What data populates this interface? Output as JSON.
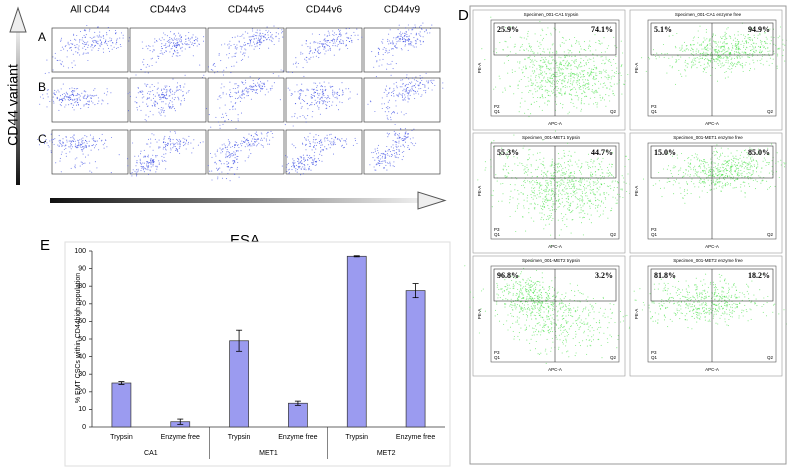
{
  "panels_abc": {
    "row_labels": [
      "A",
      "B",
      "C"
    ],
    "columns": [
      "All CD44",
      "CD44v3",
      "CD44v5",
      "CD44v6",
      "CD44v9"
    ],
    "y_axis": "CD44 variant",
    "x_axis": "ESA"
  },
  "panel_d": {
    "label": "D",
    "x_axis": "APC-A",
    "y_axis": "PE-A",
    "q1": "Q1",
    "q2": "Q2",
    "plots": [
      {
        "title": "Specimen_001-CA1 trypsin",
        "gate": "P2",
        "left": "25.9%",
        "right": "74.1%"
      },
      {
        "title": "Specimen_001-CA1 enzyme free",
        "gate": "P3",
        "left": "5.1%",
        "right": "94.9%"
      },
      {
        "title": "Specimen_001-MET1 trypsin",
        "gate": "P3",
        "left": "55.3%",
        "right": "44.7%"
      },
      {
        "title": "Specimen_001-MET1 enzyme free",
        "gate": "P3",
        "left": "15.0%",
        "right": "85.0%"
      },
      {
        "title": "Specimen_001-MET2 trypsin",
        "gate": "P3",
        "left": "96.8%",
        "right": "3.2%"
      },
      {
        "title": "Specimen_001-MET2 enzyme free",
        "gate": "P3",
        "left": "81.8%",
        "right": "18.2%"
      }
    ]
  },
  "chart_data": {
    "type": "bar",
    "panel_label": "E",
    "y_label": "% EMT CSCs within CD44high population",
    "categories": [
      "Trypsin",
      "Enzyme free",
      "Trypsin",
      "Enzyme free",
      "Trypsin",
      "Enzyme free"
    ],
    "groups": [
      "CA1",
      "MET1",
      "MET2"
    ],
    "values": [
      25,
      3,
      49,
      13.5,
      97,
      77.5
    ],
    "errors": [
      0.8,
      1.5,
      6,
      1.2,
      0.3,
      4
    ],
    "color": "#9b9bf0",
    "ylim": [
      0,
      100
    ],
    "yticks": [
      0,
      10,
      20,
      30,
      40,
      50,
      60,
      70,
      80,
      90,
      100
    ],
    "grid": false
  }
}
